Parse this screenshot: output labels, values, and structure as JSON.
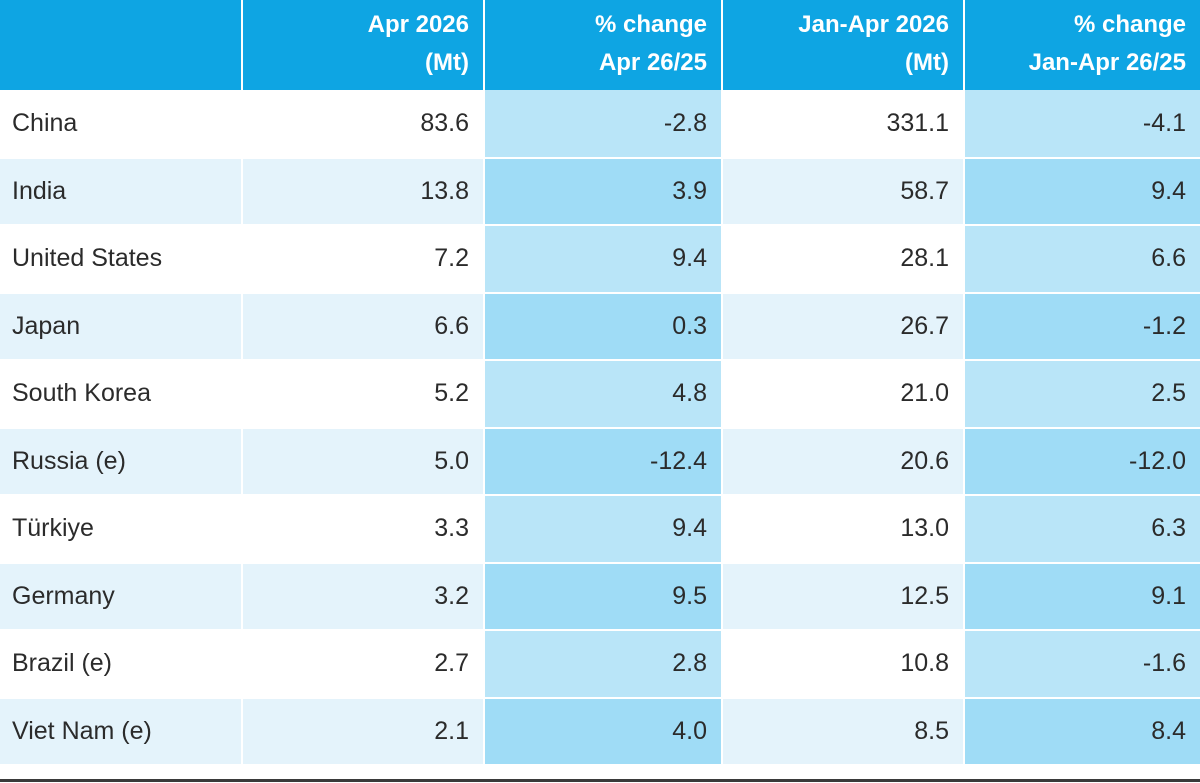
{
  "table": {
    "headers": [
      {
        "line1": "",
        "line2": ""
      },
      {
        "line1": "Apr 2026",
        "line2": "(Mt)"
      },
      {
        "line1": "% change",
        "line2": "Apr 26/25"
      },
      {
        "line1": "Jan-Apr 2026",
        "line2": "(Mt)"
      },
      {
        "line1": "% change",
        "line2": "Jan-Apr 26/25"
      }
    ],
    "rows": [
      {
        "country": "China",
        "apr": "83.6",
        "apr_change": "-2.8",
        "ytd": "331.1",
        "ytd_change": "-4.1"
      },
      {
        "country": "India",
        "apr": "13.8",
        "apr_change": "3.9",
        "ytd": "58.7",
        "ytd_change": "9.4"
      },
      {
        "country": "United States",
        "apr": "7.2",
        "apr_change": "9.4",
        "ytd": "28.1",
        "ytd_change": "6.6"
      },
      {
        "country": "Japan",
        "apr": "6.6",
        "apr_change": "0.3",
        "ytd": "26.7",
        "ytd_change": "-1.2"
      },
      {
        "country": "South Korea",
        "apr": "5.2",
        "apr_change": "4.8",
        "ytd": "21.0",
        "ytd_change": "2.5"
      },
      {
        "country": "Russia (e)",
        "apr": "5.0",
        "apr_change": "-12.4",
        "ytd": "20.6",
        "ytd_change": "-12.0"
      },
      {
        "country": "Türkiye",
        "apr": "3.3",
        "apr_change": "9.4",
        "ytd": "13.0",
        "ytd_change": "6.3"
      },
      {
        "country": "Germany",
        "apr": "3.2",
        "apr_change": "9.5",
        "ytd": "12.5",
        "ytd_change": "9.1"
      },
      {
        "country": "Brazil (e)",
        "apr": "2.7",
        "apr_change": "2.8",
        "ytd": "10.8",
        "ytd_change": "-1.6"
      },
      {
        "country": "Viet Nam (e)",
        "apr": "2.1",
        "apr_change": "4.0",
        "ytd": "8.5",
        "ytd_change": "8.4"
      }
    ]
  },
  "colors": {
    "header_bg": "#0ea5e3",
    "row_light": "#ffffff",
    "row_tint": "#e4f3fb",
    "pct_light": "#b9e5f8",
    "pct_dark": "#9fdcf6"
  }
}
